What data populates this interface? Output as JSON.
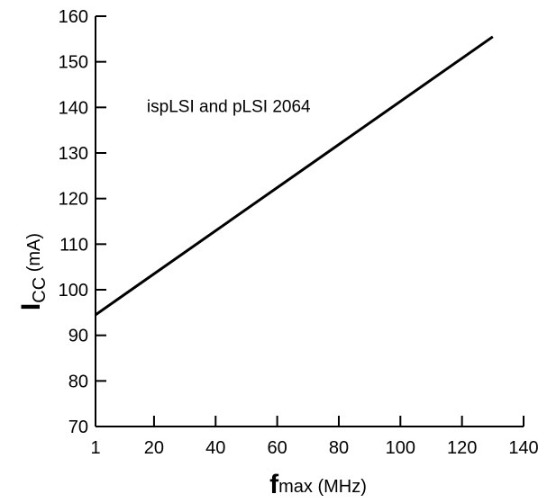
{
  "chart_data": {
    "type": "line",
    "title": "",
    "xlabel": {
      "main": "f",
      "sub": "max",
      "unit": " (MHz)"
    },
    "ylabel": {
      "main": "I",
      "sub": "CC",
      "unit": " (mA)"
    },
    "xlim": [
      1,
      140
    ],
    "ylim": [
      70,
      160
    ],
    "x_ticks": [
      1,
      20,
      40,
      60,
      80,
      100,
      120,
      140
    ],
    "y_ticks": [
      70,
      80,
      90,
      100,
      110,
      120,
      130,
      140,
      150,
      160
    ],
    "grid": false,
    "series": [
      {
        "x": [
          1,
          130
        ],
        "y": [
          94.5,
          155.5
        ]
      }
    ],
    "annotations": [
      {
        "text": "ispLSI and pLSI 2064",
        "x": 20,
        "y": 139
      }
    ],
    "line_color": "#000000"
  }
}
